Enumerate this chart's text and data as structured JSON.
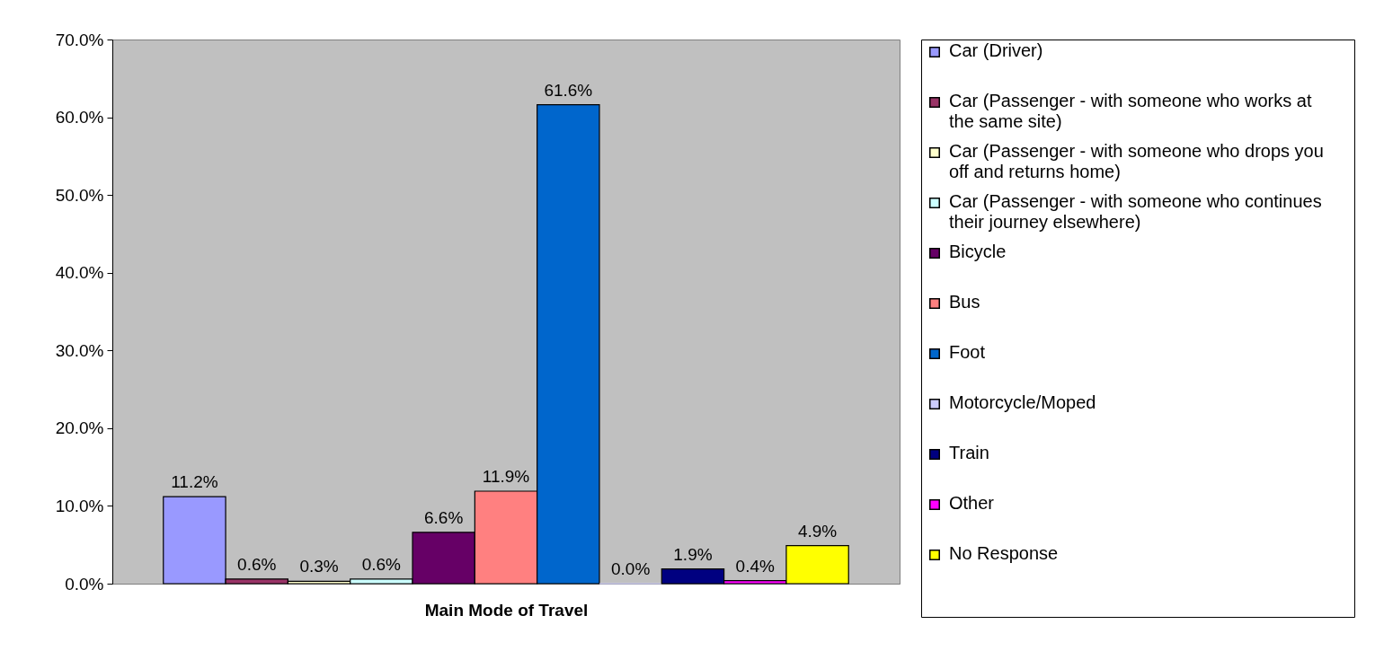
{
  "chart_data": {
    "type": "bar",
    "xlabel": "Main Mode of Travel",
    "categories": [
      null
    ],
    "series": [
      {
        "name": "Car (Driver)",
        "color": "#9999ff",
        "values": [
          11.2
        ],
        "value_labels": [
          "11.2%"
        ]
      },
      {
        "name": "Car (Passenger - with someone who works at the same site)",
        "color": "#993366",
        "values": [
          0.6
        ],
        "value_labels": [
          "0.6%"
        ]
      },
      {
        "name": "Car (Passenger - with someone who drops you off and returns home)",
        "color": "#ffffcc",
        "values": [
          0.3
        ],
        "value_labels": [
          "0.3%"
        ]
      },
      {
        "name": "Car (Passenger - with someone who continues their journey elsewhere)",
        "color": "#ccffff",
        "values": [
          0.6
        ],
        "value_labels": [
          "0.6%"
        ]
      },
      {
        "name": "Bicycle",
        "color": "#660066",
        "values": [
          6.6
        ],
        "value_labels": [
          "6.6%"
        ]
      },
      {
        "name": "Bus",
        "color": "#ff8080",
        "values": [
          11.9
        ],
        "value_labels": [
          "11.9%"
        ]
      },
      {
        "name": "Foot",
        "color": "#0066cc",
        "values": [
          61.6
        ],
        "value_labels": [
          "61.6%"
        ]
      },
      {
        "name": "Motorcycle/Moped",
        "color": "#ccccff",
        "values": [
          0.0
        ],
        "value_labels": [
          "0.0%"
        ]
      },
      {
        "name": "Train",
        "color": "#000080",
        "values": [
          1.9
        ],
        "value_labels": [
          "1.9%"
        ]
      },
      {
        "name": "Other",
        "color": "#ff00ff",
        "values": [
          0.4
        ],
        "value_labels": [
          "0.4%"
        ]
      },
      {
        "name": "No Response",
        "color": "#ffff00",
        "values": [
          4.9
        ],
        "value_labels": [
          "4.9%"
        ]
      }
    ],
    "ylim": [
      0,
      70
    ],
    "yticks": [
      {
        "value": 0,
        "label": "0.0%"
      },
      {
        "value": 10,
        "label": "10.0%"
      },
      {
        "value": 20,
        "label": "20.0%"
      },
      {
        "value": 30,
        "label": "30.0%"
      },
      {
        "value": 40,
        "label": "40.0%"
      },
      {
        "value": 50,
        "label": "50.0%"
      },
      {
        "value": 60,
        "label": "60.0%"
      },
      {
        "value": 70,
        "label": "70.0%"
      }
    ],
    "legend": "right"
  }
}
